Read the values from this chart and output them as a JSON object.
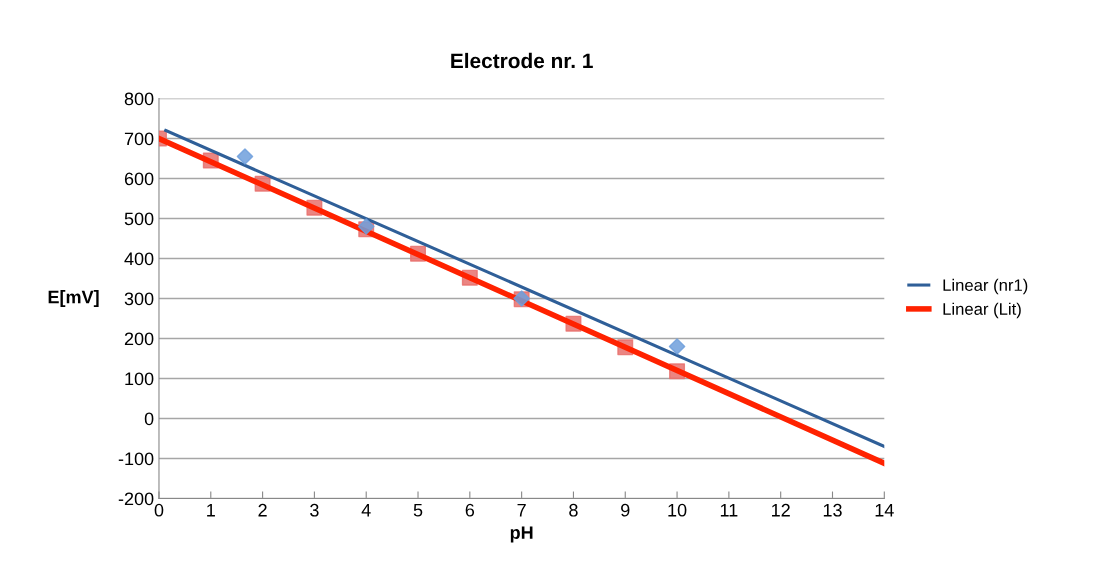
{
  "chart_data": {
    "type": "scatter",
    "title": "Electrode nr. 1",
    "xlabel": "pH",
    "ylabel": "E[mV]",
    "xlim": [
      0,
      14
    ],
    "xticks": [
      0,
      1,
      2,
      3,
      4,
      5,
      6,
      7,
      8,
      9,
      10,
      11,
      12,
      13,
      14
    ],
    "ylim": [
      -200,
      800
    ],
    "yticks": [
      -200,
      -100,
      0,
      100,
      200,
      300,
      400,
      500,
      600,
      700,
      800
    ],
    "grid": "y",
    "legend": "right",
    "series": [
      {
        "marker": "diamond",
        "color": "#6f9fdc",
        "x": [
          1.66,
          4,
          7,
          10
        ],
        "values": [
          655,
          480,
          300,
          180
        ]
      },
      {
        "marker": "square",
        "color": "#e8706c",
        "x": [
          0,
          1,
          2,
          3,
          4,
          5,
          6,
          7,
          8,
          9,
          10
        ],
        "values": [
          700,
          645,
          587,
          527,
          473,
          412,
          352,
          298,
          237,
          178,
          118
        ]
      },
      {
        "type": "line",
        "name": "Linear (nr1)",
        "color": "#2f5f98",
        "marker": "none",
        "x": [
          0.13,
          14
        ],
        "values": [
          720,
          -70
        ]
      },
      {
        "type": "line",
        "name": "Linear (Lit)",
        "color": "#ff2200",
        "marker": "none",
        "x": [
          0,
          14
        ],
        "values": [
          700,
          -112
        ]
      }
    ]
  }
}
